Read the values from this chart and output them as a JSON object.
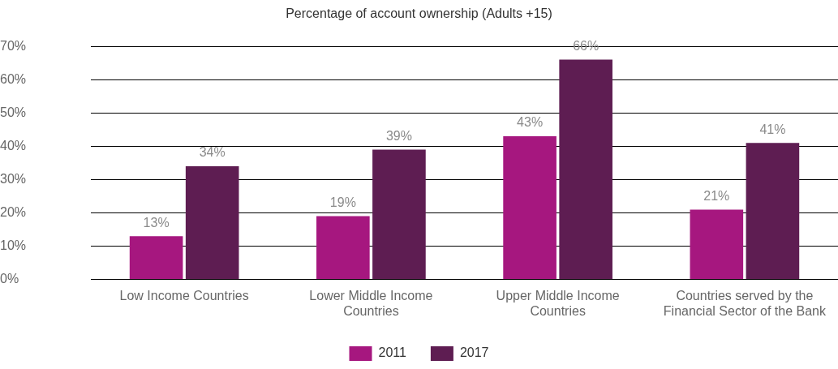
{
  "chart_data": {
    "type": "bar",
    "title": "Percentage of account ownership (Adults +15)",
    "categories": [
      "Low Income Countries",
      "Lower Middle Income Countries",
      "Upper Middle Income Countries",
      "Countries served by the Financial Sector of the Bank"
    ],
    "series": [
      {
        "name": "2011",
        "color": "#a6177f",
        "values": [
          13,
          19,
          43,
          21
        ],
        "value_labels": [
          "13%",
          "19%",
          "43%",
          "21%"
        ]
      },
      {
        "name": "2017",
        "color": "#5e1d52",
        "values": [
          34,
          39,
          66,
          41
        ],
        "value_labels": [
          "34%",
          "39%",
          "66%",
          "41%"
        ]
      }
    ],
    "ylim": [
      0,
      70
    ],
    "yticks": [
      {
        "value": 0,
        "label": "0%"
      },
      {
        "value": 10,
        "label": "10%"
      },
      {
        "value": 20,
        "label": "20%"
      },
      {
        "value": 30,
        "label": "30%"
      },
      {
        "value": 40,
        "label": "40%"
      },
      {
        "value": 50,
        "label": "50%"
      },
      {
        "value": 60,
        "label": "60%"
      },
      {
        "value": 70,
        "label": "70%"
      }
    ],
    "grid": "y",
    "legend": "bottom"
  }
}
